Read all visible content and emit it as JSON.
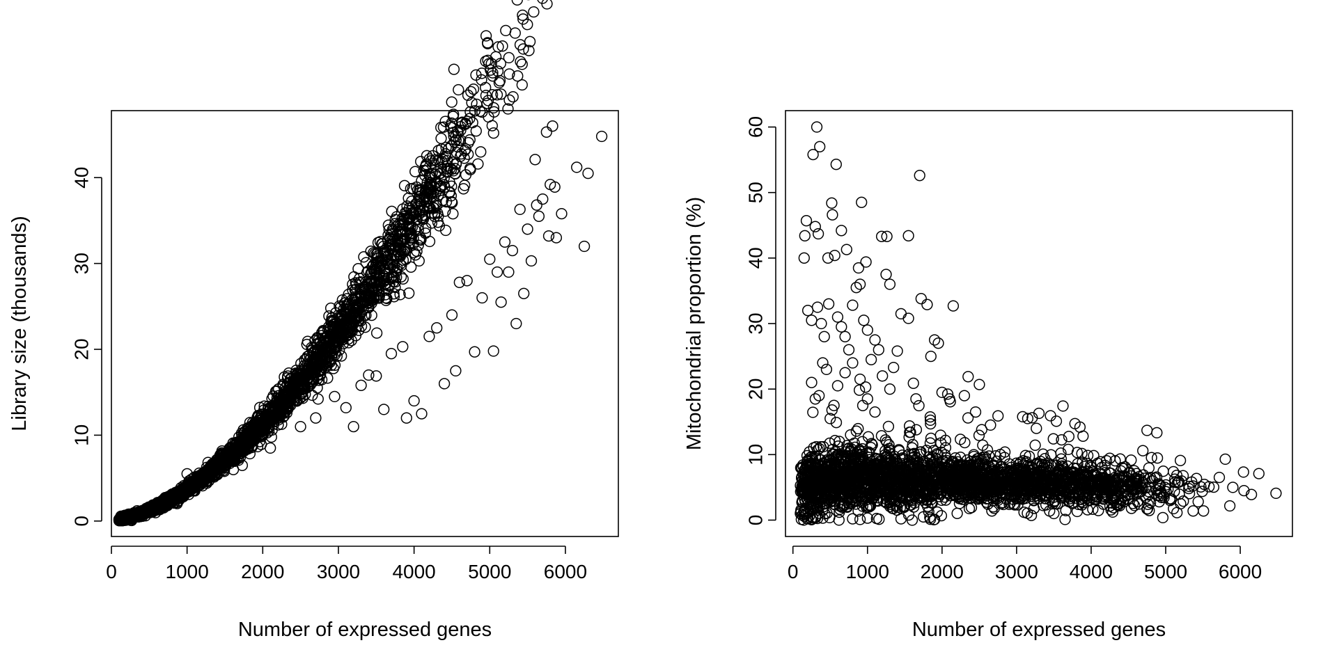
{
  "chart_data": [
    {
      "type": "scatter",
      "marker": "open-circle",
      "xlabel": "Number of expressed genes",
      "ylabel": "Library size (thousands)",
      "xlim": [
        0,
        6700
      ],
      "ylim": [
        -1.8,
        47.8
      ],
      "x_ticks": [
        0,
        1000,
        2000,
        3000,
        4000,
        5000,
        6000
      ],
      "y_ticks": [
        0,
        10,
        20,
        30,
        40
      ],
      "grid": false,
      "trend": "y ≈ 0.000043·x^1.64 + 0.15, x from 100 to 6500",
      "points": [
        [
          1000,
          5.5
        ],
        [
          1200,
          4.9
        ],
        [
          1400,
          5.4
        ],
        [
          1600,
          7.0
        ],
        [
          1750,
          8.5
        ],
        [
          1850,
          8.7
        ],
        [
          2950,
          14.5
        ],
        [
          3100,
          13.2
        ],
        [
          3300,
          15.8
        ],
        [
          3400,
          17.0
        ],
        [
          3500,
          16.9
        ],
        [
          3700,
          19.5
        ],
        [
          3850,
          20.3
        ],
        [
          3900,
          12.0
        ],
        [
          4100,
          12.5
        ],
        [
          4400,
          16.0
        ],
        [
          4600,
          27.8
        ],
        [
          4700,
          28.0
        ],
        [
          4800,
          19.7
        ],
        [
          5000,
          30.5
        ],
        [
          5050,
          19.8
        ],
        [
          5200,
          32.5
        ],
        [
          5250,
          29.0
        ],
        [
          5300,
          31.5
        ],
        [
          5350,
          23.0
        ],
        [
          5400,
          36.3
        ],
        [
          5450,
          26.5
        ],
        [
          5500,
          34.0
        ],
        [
          5550,
          30.3
        ],
        [
          5600,
          42.1
        ],
        [
          5620,
          36.8
        ],
        [
          5650,
          35.5
        ],
        [
          5700,
          37.5
        ],
        [
          5750,
          45.3
        ],
        [
          5780,
          33.2
        ],
        [
          5800,
          39.2
        ],
        [
          5830,
          46.0
        ],
        [
          5860,
          38.9
        ],
        [
          5880,
          33.0
        ],
        [
          5950,
          35.8
        ],
        [
          6150,
          41.2
        ],
        [
          6250,
          32.0
        ],
        [
          6300,
          40.5
        ],
        [
          6480,
          44.8
        ],
        [
          5100,
          29.0
        ],
        [
          5150,
          25.5
        ],
        [
          4900,
          26.0
        ],
        [
          4500,
          24.0
        ],
        [
          4300,
          22.5
        ],
        [
          2100,
          8.5
        ],
        [
          2500,
          11.0
        ],
        [
          2700,
          12.0
        ],
        [
          3200,
          11.0
        ],
        [
          3600,
          13.0
        ],
        [
          4000,
          14.0
        ],
        [
          4200,
          21.5
        ],
        [
          4550,
          17.5
        ]
      ]
    },
    {
      "type": "scatter",
      "marker": "open-circle",
      "xlabel": "Number of expressed genes",
      "ylabel": "Mitochondrial proportion (%)",
      "xlim": [
        -100,
        6700
      ],
      "ylim": [
        -2.5,
        62.5
      ],
      "x_ticks": [
        0,
        1000,
        2000,
        3000,
        4000,
        5000,
        6000
      ],
      "y_ticks": [
        0,
        10,
        20,
        30,
        40,
        50,
        60
      ],
      "grid": false,
      "trend": "dense band about 4-10%, peaking near 6% at 500-2000 genes and declining toward 4% at 6000 genes",
      "points": [
        [
          320,
          60.0
        ],
        [
          270,
          55.8
        ],
        [
          360,
          57.0
        ],
        [
          580,
          54.3
        ],
        [
          1700,
          52.6
        ],
        [
          920,
          48.5
        ],
        [
          520,
          48.4
        ],
        [
          530,
          46.6
        ],
        [
          180,
          45.7
        ],
        [
          160,
          43.4
        ],
        [
          300,
          44.8
        ],
        [
          340,
          43.7
        ],
        [
          650,
          44.2
        ],
        [
          1190,
          43.3
        ],
        [
          1260,
          43.3
        ],
        [
          1550,
          43.4
        ],
        [
          150,
          40.0
        ],
        [
          470,
          40.0
        ],
        [
          560,
          40.4
        ],
        [
          720,
          41.3
        ],
        [
          880,
          38.5
        ],
        [
          980,
          39.4
        ],
        [
          1250,
          37.5
        ],
        [
          1300,
          36.0
        ],
        [
          1720,
          33.8
        ],
        [
          1800,
          32.9
        ],
        [
          2150,
          32.7
        ],
        [
          1450,
          31.5
        ],
        [
          1550,
          30.8
        ],
        [
          1900,
          27.5
        ],
        [
          1950,
          27.0
        ],
        [
          1850,
          25.0
        ],
        [
          2350,
          21.9
        ],
        [
          2500,
          20.7
        ],
        [
          2450,
          16.5
        ],
        [
          2650,
          14.5
        ],
        [
          3300,
          16.3
        ],
        [
          3150,
          15.5
        ],
        [
          3850,
          14.2
        ],
        [
          4750,
          13.7
        ],
        [
          2100,
          18.5
        ],
        [
          2300,
          19.0
        ],
        [
          2000,
          19.5
        ],
        [
          1650,
          18.5
        ],
        [
          1400,
          25.8
        ],
        [
          1350,
          23.3
        ],
        [
          200,
          32.0
        ],
        [
          250,
          30.5
        ],
        [
          330,
          32.5
        ],
        [
          380,
          30.0
        ],
        [
          420,
          28.0
        ],
        [
          480,
          33.0
        ],
        [
          600,
          31.0
        ],
        [
          650,
          29.5
        ],
        [
          700,
          28.0
        ],
        [
          750,
          26.0
        ],
        [
          800,
          32.8
        ],
        [
          850,
          35.5
        ],
        [
          900,
          36.0
        ],
        [
          950,
          30.5
        ],
        [
          1000,
          29.0
        ],
        [
          1050,
          24.5
        ],
        [
          1100,
          27.5
        ],
        [
          1150,
          26.0
        ],
        [
          1200,
          22.0
        ],
        [
          1300,
          20.0
        ],
        [
          250,
          21.0
        ],
        [
          300,
          18.5
        ],
        [
          350,
          19.0
        ],
        [
          400,
          24.0
        ],
        [
          450,
          23.0
        ],
        [
          500,
          15.5
        ],
        [
          550,
          17.5
        ],
        [
          600,
          20.5
        ],
        [
          700,
          22.5
        ],
        [
          800,
          24.0
        ],
        [
          900,
          21.5
        ],
        [
          1000,
          18.5
        ],
        [
          1100,
          16.5
        ],
        [
          5800,
          9.3
        ],
        [
          6250,
          7.1
        ],
        [
          6480,
          4.1
        ],
        [
          6150,
          3.9
        ],
        [
          5900,
          5.0
        ],
        [
          6050,
          4.5
        ],
        [
          100,
          1.0
        ],
        [
          150,
          0.6
        ],
        [
          200,
          0.2
        ],
        [
          300,
          0.5
        ],
        [
          400,
          0.3
        ],
        [
          800,
          0.2
        ],
        [
          900,
          0.1
        ],
        [
          1000,
          0.3
        ],
        [
          1450,
          0.2
        ],
        [
          1600,
          0.0
        ],
        [
          1750,
          0.5
        ],
        [
          1900,
          0.1
        ],
        [
          3650,
          0.1
        ],
        [
          2700,
          1.8
        ],
        [
          3100,
          1.2
        ],
        [
          3500,
          1.0
        ],
        [
          4300,
          1.9
        ],
        [
          4750,
          1.7
        ],
        [
          5200,
          2.5
        ]
      ]
    }
  ]
}
